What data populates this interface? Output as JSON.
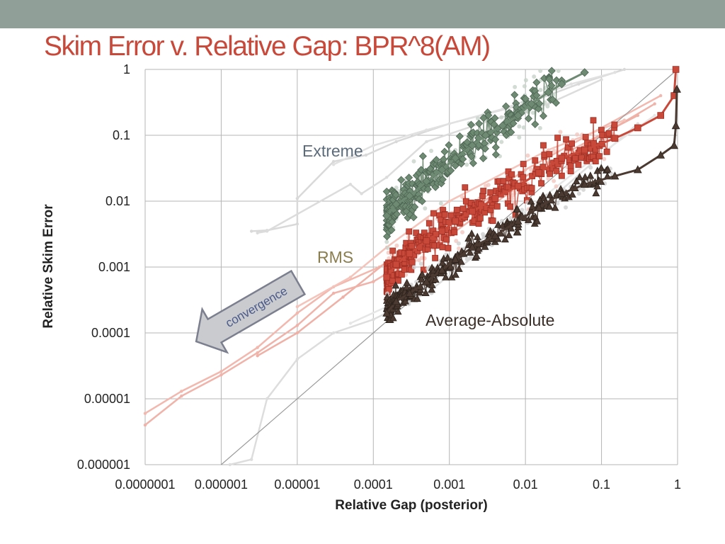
{
  "slide": {
    "title": "Skim Error v. Relative Gap: BPR^8(AM)"
  },
  "chart_data": {
    "type": "scatter",
    "title": "Skim Error v. Relative Gap: BPR^8(AM)",
    "xlabel": "Relative Gap (posterior)",
    "ylabel": "Relative Skim Error",
    "xscale": "log",
    "yscale": "log",
    "xlim": [
      1e-07,
      1
    ],
    "ylim": [
      1e-06,
      1
    ],
    "x_ticks": [
      1e-07,
      1e-06,
      1e-05,
      0.0001,
      0.001,
      0.01,
      0.1,
      1
    ],
    "x_tick_labels": [
      "0.0000001",
      "0.000001",
      "0.00001",
      "0.0001",
      "0.001",
      "0.01",
      "0.1",
      "1"
    ],
    "y_ticks": [
      1e-06,
      1e-05,
      0.0001,
      0.001,
      0.01,
      0.1,
      1
    ],
    "y_tick_labels": [
      "0.000001",
      "0.00001",
      "0.0001",
      "0.001",
      "0.01",
      "0.1",
      "1"
    ],
    "grid": true,
    "reference_line": {
      "label": "y = x",
      "x": [
        1e-06,
        0.9
      ],
      "y": [
        1e-06,
        0.9
      ]
    },
    "series": [
      {
        "name": "Extreme",
        "color": "#6f8a73",
        "marker": "diamond",
        "x": [
          0.00015,
          0.0002,
          0.0003,
          0.0005,
          0.0008,
          0.0012,
          0.002,
          0.003,
          0.005,
          0.008,
          0.012,
          0.02,
          0.03,
          0.06
        ],
        "y": [
          0.006,
          0.009,
          0.012,
          0.02,
          0.03,
          0.045,
          0.07,
          0.1,
          0.14,
          0.2,
          0.3,
          0.45,
          0.6,
          0.9
        ]
      },
      {
        "name": "RMS",
        "color": "#c8493a",
        "marker": "square",
        "x": [
          0.00015,
          0.0002,
          0.0003,
          0.0005,
          0.0008,
          0.0012,
          0.002,
          0.004,
          0.008,
          0.015,
          0.03,
          0.06,
          0.15,
          0.3,
          0.6,
          0.9,
          0.95
        ],
        "y": [
          0.0007,
          0.0011,
          0.0016,
          0.0025,
          0.0035,
          0.005,
          0.007,
          0.011,
          0.017,
          0.027,
          0.045,
          0.06,
          0.09,
          0.13,
          0.2,
          0.4,
          1.0
        ]
      },
      {
        "name": "Average-Absolute",
        "color": "#4a3a31",
        "marker": "triangle",
        "x": [
          0.00015,
          0.0002,
          0.0003,
          0.0005,
          0.0008,
          0.0012,
          0.002,
          0.004,
          0.008,
          0.015,
          0.03,
          0.06,
          0.15,
          0.3,
          0.6,
          0.9,
          0.95,
          0.98
        ],
        "y": [
          0.0002,
          0.0003,
          0.0004,
          0.0006,
          0.0009,
          0.0013,
          0.002,
          0.003,
          0.005,
          0.008,
          0.013,
          0.018,
          0.024,
          0.03,
          0.05,
          0.07,
          0.14,
          0.5
        ]
      }
    ],
    "annotations": [
      {
        "text": "Extreme",
        "color": "#5c6b7a"
      },
      {
        "text": "RMS",
        "color": "#8a7d4e"
      },
      {
        "text": "Average-Absolute",
        "color": "#3a2f28"
      },
      {
        "text": "convergence",
        "color": "#4a5a8a"
      }
    ]
  }
}
